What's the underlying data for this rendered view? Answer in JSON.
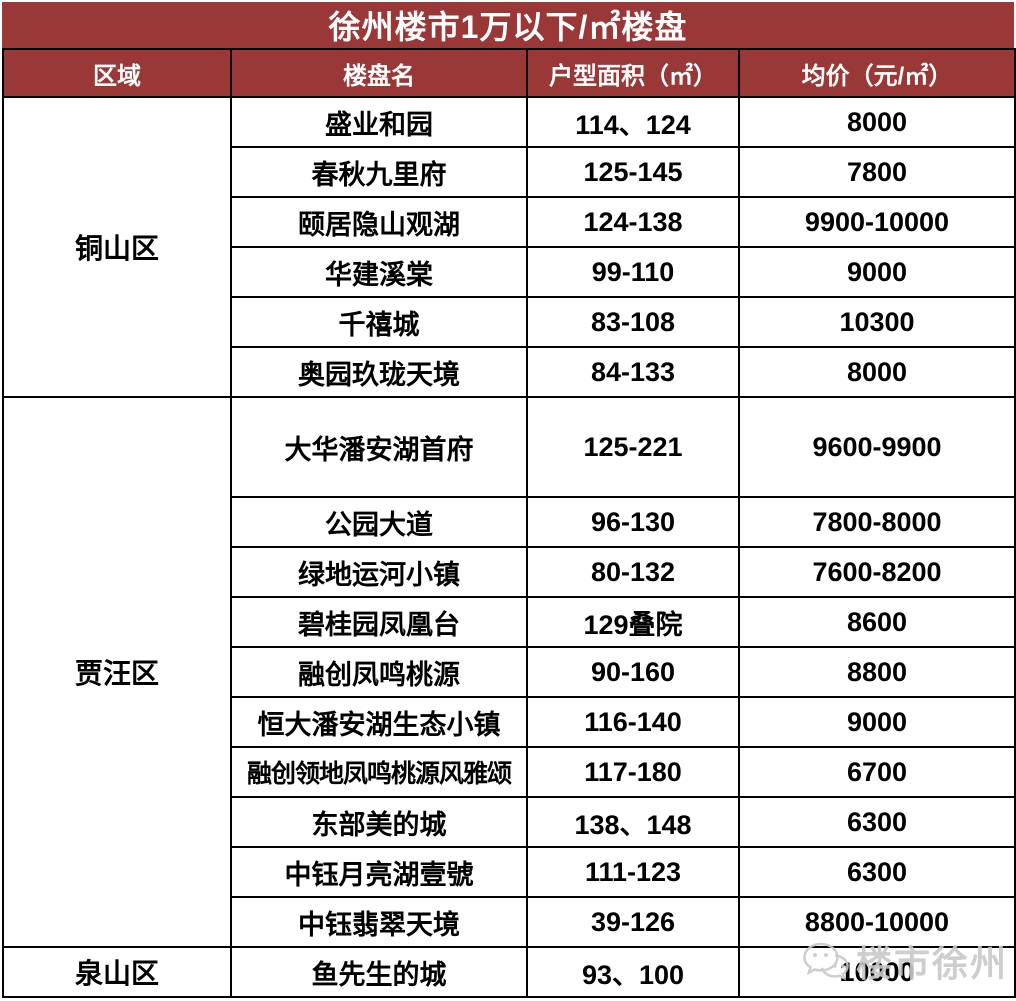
{
  "title": "徐州楼市1万以下/㎡楼盘",
  "columns": [
    "区域",
    "楼盘名",
    "户型面积（㎡）",
    "均价（元/㎡）"
  ],
  "sections": [
    {
      "region": "铜山区",
      "rows": [
        {
          "name": "盛业和园",
          "area": "114、124",
          "price": "8000"
        },
        {
          "name": "春秋九里府",
          "area": "125-145",
          "price": "7800"
        },
        {
          "name": "颐居隐山观湖",
          "area": "124-138",
          "price": "9900-10000"
        },
        {
          "name": "华建溪棠",
          "area": "99-110",
          "price": "9000"
        },
        {
          "name": "千禧城",
          "area": "83-108",
          "price": "10300"
        },
        {
          "name": "奥园玖珑天境",
          "area": "84-133",
          "price": "8000"
        }
      ]
    },
    {
      "region": "贾汪区",
      "rows": [
        {
          "name": "大华潘安湖首府",
          "area": "125-221",
          "price": "9600-9900",
          "tall": true
        },
        {
          "name": "公园大道",
          "area": "96-130",
          "price": "7800-8000"
        },
        {
          "name": "绿地运河小镇",
          "area": "80-132",
          "price": "7600-8200"
        },
        {
          "name": "碧桂园凤凰台",
          "area": "129叠院",
          "price": "8600"
        },
        {
          "name": "融创凤鸣桃源",
          "area": "90-160",
          "price": "8800"
        },
        {
          "name": "恒大潘安湖生态小镇",
          "area": "116-140",
          "price": "9000"
        },
        {
          "name": "融创领地凤鸣桃源风雅颂",
          "area": "117-180",
          "price": "6700"
        },
        {
          "name": "东部美的城",
          "area": "138、148",
          "price": "6300"
        },
        {
          "name": "中钰月亮湖壹號",
          "area": "111-123",
          "price": "6300"
        },
        {
          "name": "中钰翡翠天境",
          "area": "39-126",
          "price": "8800-10000"
        }
      ]
    },
    {
      "region": "泉山区",
      "rows": [
        {
          "name": "鱼先生的城",
          "area": "93、100",
          "price": "10000"
        }
      ]
    }
  ],
  "watermark": {
    "text": "楼市徐州"
  },
  "colors": {
    "header_red": "#9A3737",
    "border_black": "#000000",
    "text_black": "#000000",
    "watermark_gray": "#C9C9C9",
    "background_white": "#FFFFFF"
  }
}
